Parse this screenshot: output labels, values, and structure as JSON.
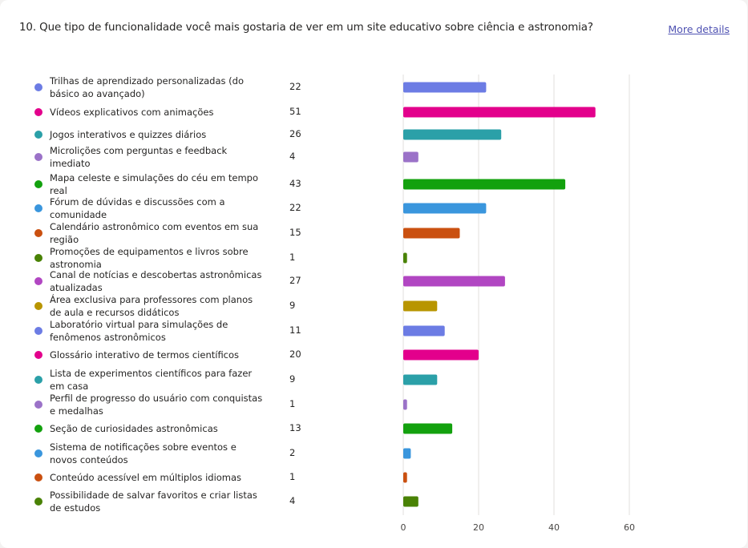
{
  "question": "10. Que tipo de funcionalidade você mais gostaria de ver em um site educativo sobre ciência e astronomia?",
  "more_details": "More details",
  "chart_data": {
    "type": "bar",
    "orientation": "horizontal",
    "categories": [
      "Trilhas de aprendizado personalizadas (do básico ao avançado)",
      "Vídeos explicativos com animações",
      "Jogos interativos e quizzes diários",
      "Microlições com perguntas e feedback imediato",
      "Mapa celeste e simulações do céu em tempo real",
      "Fórum de dúvidas e discussões com a comunidade",
      "Calendário astronômico com eventos em sua região",
      "Promoções de equipamentos e livros sobre astronomia",
      "Canal de notícias e descobertas astronômicas atualizadas",
      "Área exclusiva para professores com planos de aula e recursos didáticos",
      "Laboratório virtual para simulações de fenômenos astronômicos",
      "Glossário interativo de termos científicos",
      "Lista de experimentos científicos para fazer em casa",
      "Perfil de progresso do usuário com conquistas e medalhas",
      "Seção de curiosidades astronômicas",
      "Sistema de notificações sobre eventos e novos conteúdos",
      "Conteúdo acessível em múltiplos idiomas",
      "Possibilidade de salvar favoritos e criar listas de estudos"
    ],
    "values": [
      22,
      51,
      26,
      4,
      43,
      22,
      15,
      1,
      27,
      9,
      11,
      20,
      9,
      1,
      13,
      2,
      1,
      4
    ],
    "colors": [
      "#6c7ce4",
      "#e3008c",
      "#2ba0a8",
      "#9b72c8",
      "#13a10e",
      "#3a96dd",
      "#ca5010",
      "#498205",
      "#b146c2",
      "#b89500",
      "#6c7ce4",
      "#e3008c",
      "#2ba0a8",
      "#9b72c8",
      "#13a10e",
      "#3a96dd",
      "#ca5010",
      "#498205"
    ],
    "xlim": [
      0,
      60
    ],
    "xticks": [
      0,
      20,
      40,
      60
    ],
    "grid": true,
    "legend": "left"
  }
}
